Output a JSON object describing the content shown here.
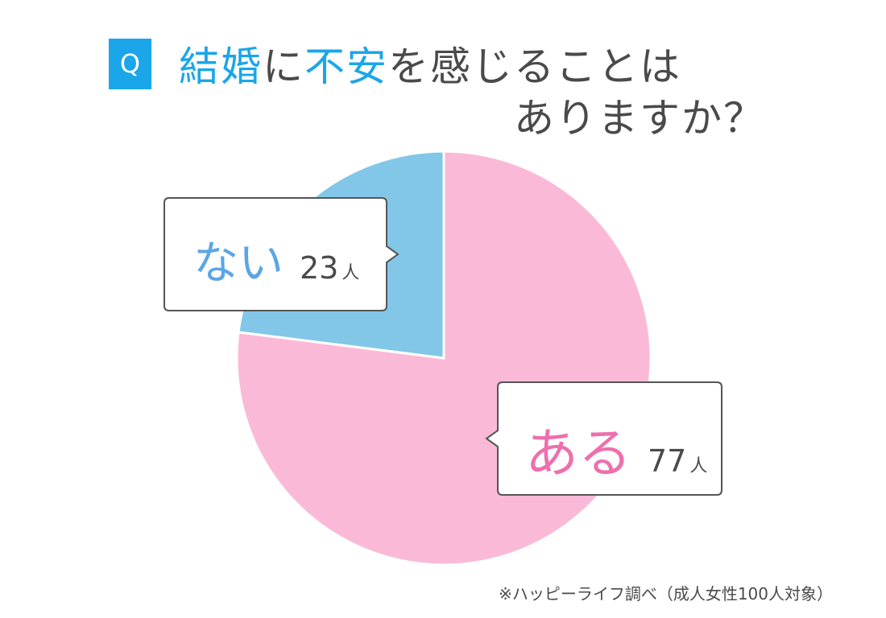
{
  "badge": "Q",
  "title": {
    "part1": "結婚",
    "part2": "に",
    "part3": "不安",
    "part4": "を感じることは",
    "line2": "ありますか？"
  },
  "chart_data": {
    "type": "pie",
    "unit": "人",
    "slices": [
      {
        "label": "ある",
        "value": 77,
        "color": "#fbb9d8"
      },
      {
        "label": "ない",
        "value": 23,
        "color": "#82c7e8"
      }
    ]
  },
  "callouts": {
    "no": {
      "label": "ない",
      "count": "23",
      "unit": "人"
    },
    "yes": {
      "label": "ある",
      "count": "77",
      "unit": "人"
    }
  },
  "source": "※ハッピーライフ調べ（成人女性100人対象）"
}
